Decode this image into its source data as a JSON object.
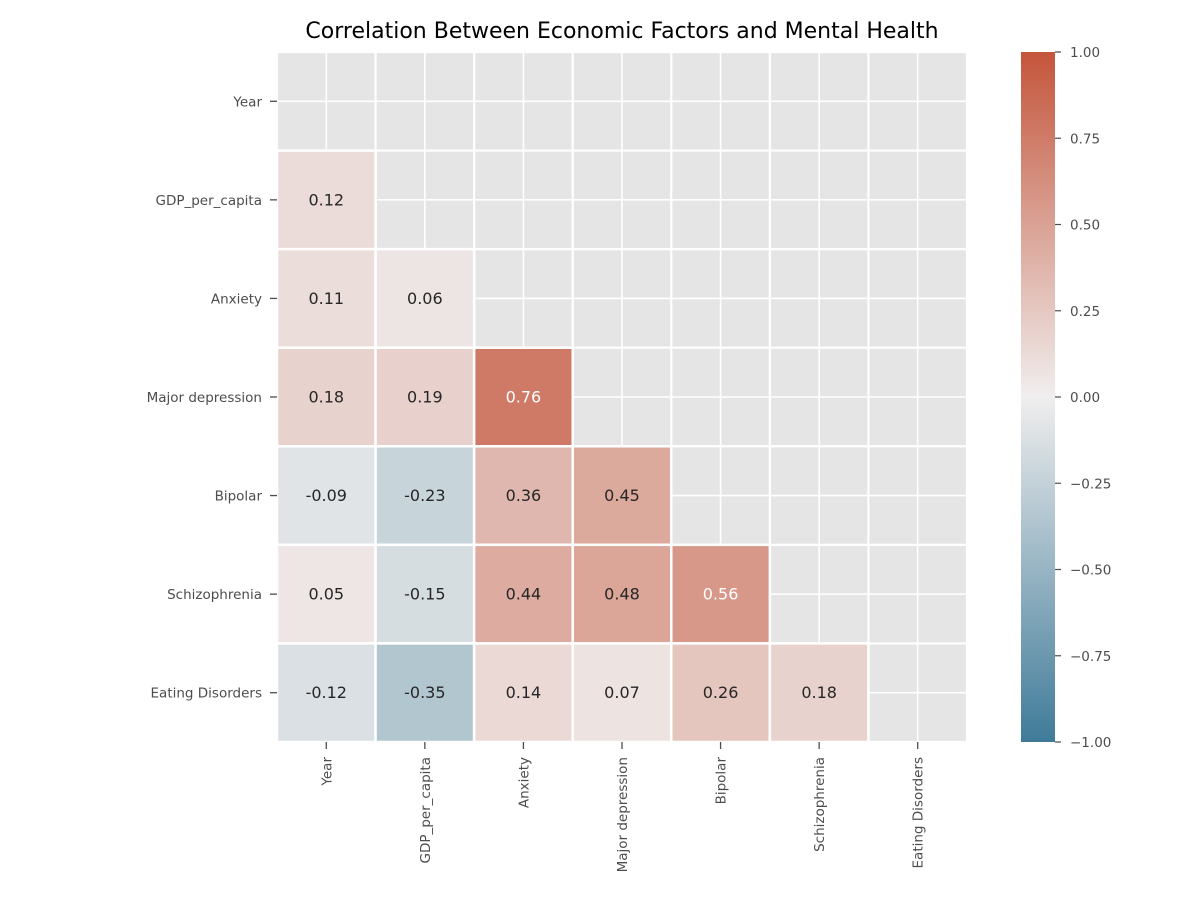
{
  "chart_data": {
    "type": "heatmap",
    "title": "Correlation Between Economic Factors and Mental Health",
    "labels": [
      "Year",
      "GDP_per_capita",
      "Anxiety",
      "Major depression",
      "Bipolar",
      "Schizophrenia",
      "Eating Disorders"
    ],
    "matrix": [
      [
        null,
        null,
        null,
        null,
        null,
        null,
        null
      ],
      [
        0.12,
        null,
        null,
        null,
        null,
        null,
        null
      ],
      [
        0.11,
        0.06,
        null,
        null,
        null,
        null,
        null
      ],
      [
        0.18,
        0.19,
        0.76,
        null,
        null,
        null,
        null
      ],
      [
        -0.09,
        -0.23,
        0.36,
        0.45,
        null,
        null,
        null
      ],
      [
        0.05,
        -0.15,
        0.44,
        0.48,
        0.56,
        null,
        null
      ],
      [
        -0.12,
        -0.35,
        0.14,
        0.07,
        0.26,
        0.18,
        null
      ]
    ],
    "cell_labels": [
      [
        "",
        "",
        "",
        "",
        "",
        "",
        ""
      ],
      [
        "0.12",
        "",
        "",
        "",
        "",
        "",
        ""
      ],
      [
        "0.11",
        "0.06",
        "",
        "",
        "",
        "",
        ""
      ],
      [
        "0.18",
        "0.19",
        "0.76",
        "",
        "",
        "",
        ""
      ],
      [
        "-0.09",
        "-0.23",
        "0.36",
        "0.45",
        "",
        "",
        ""
      ],
      [
        "0.05",
        "-0.15",
        "0.44",
        "0.48",
        "0.56",
        "",
        ""
      ],
      [
        "-0.12",
        "-0.35",
        "0.14",
        "0.07",
        "0.26",
        "0.18",
        ""
      ]
    ],
    "mask": "upper triangle including diagonal",
    "vmin": -1.0,
    "vmax": 1.0,
    "colorbar": {
      "ticks": [
        1.0,
        0.75,
        0.5,
        0.25,
        0.0,
        -0.25,
        -0.5,
        -0.75,
        -1.0
      ],
      "tick_labels": [
        "1.00",
        "0.75",
        "0.50",
        "0.25",
        "0.00",
        "−0.25",
        "−0.50",
        "−0.75",
        "−1.00"
      ]
    },
    "colors": {
      "negative": "#3f7b99",
      "center": "#f0eeee",
      "positive": "#c4553b",
      "masked_background": "#e5e5e5",
      "grid": "#ffffff",
      "text_dark": "#262626",
      "text_light": "#ffffff"
    }
  }
}
